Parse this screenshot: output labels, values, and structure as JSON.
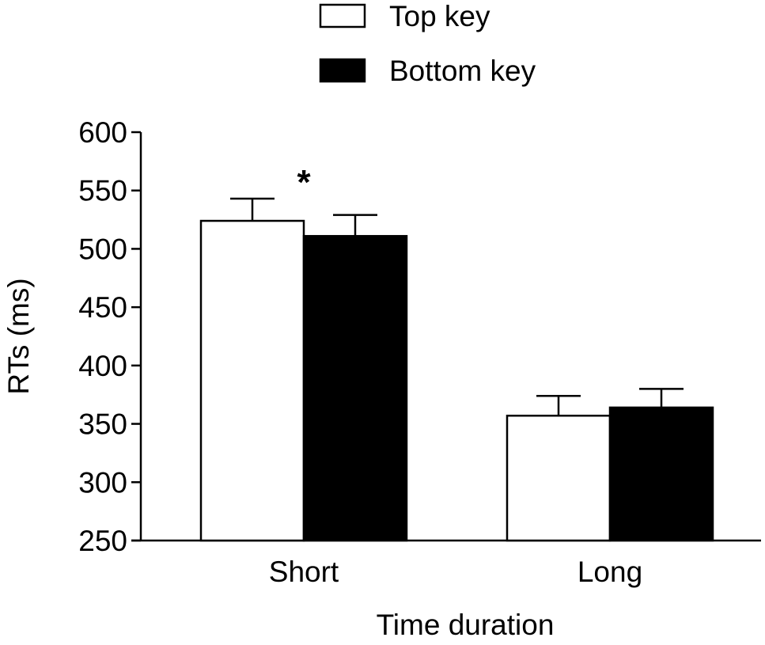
{
  "chart_data": {
    "type": "bar",
    "title": "",
    "xlabel": "Time duration",
    "ylabel": "RTs (ms)",
    "ylim": [
      250,
      600
    ],
    "yticks": [
      250,
      300,
      350,
      400,
      450,
      500,
      550,
      600
    ],
    "categories": [
      "Short",
      "Long"
    ],
    "series": [
      {
        "name": "Top key",
        "values": [
          524,
          357
        ],
        "errors": [
          19,
          17
        ],
        "color": "#ffffff"
      },
      {
        "name": "Bottom key",
        "values": [
          511,
          364
        ],
        "errors": [
          18,
          16
        ],
        "color": "#000000"
      }
    ],
    "annotations": [
      {
        "text": "*",
        "category": "Short"
      }
    ],
    "legend": {
      "placement": "top-center"
    },
    "grid": false,
    "error_bars": "upper"
  }
}
